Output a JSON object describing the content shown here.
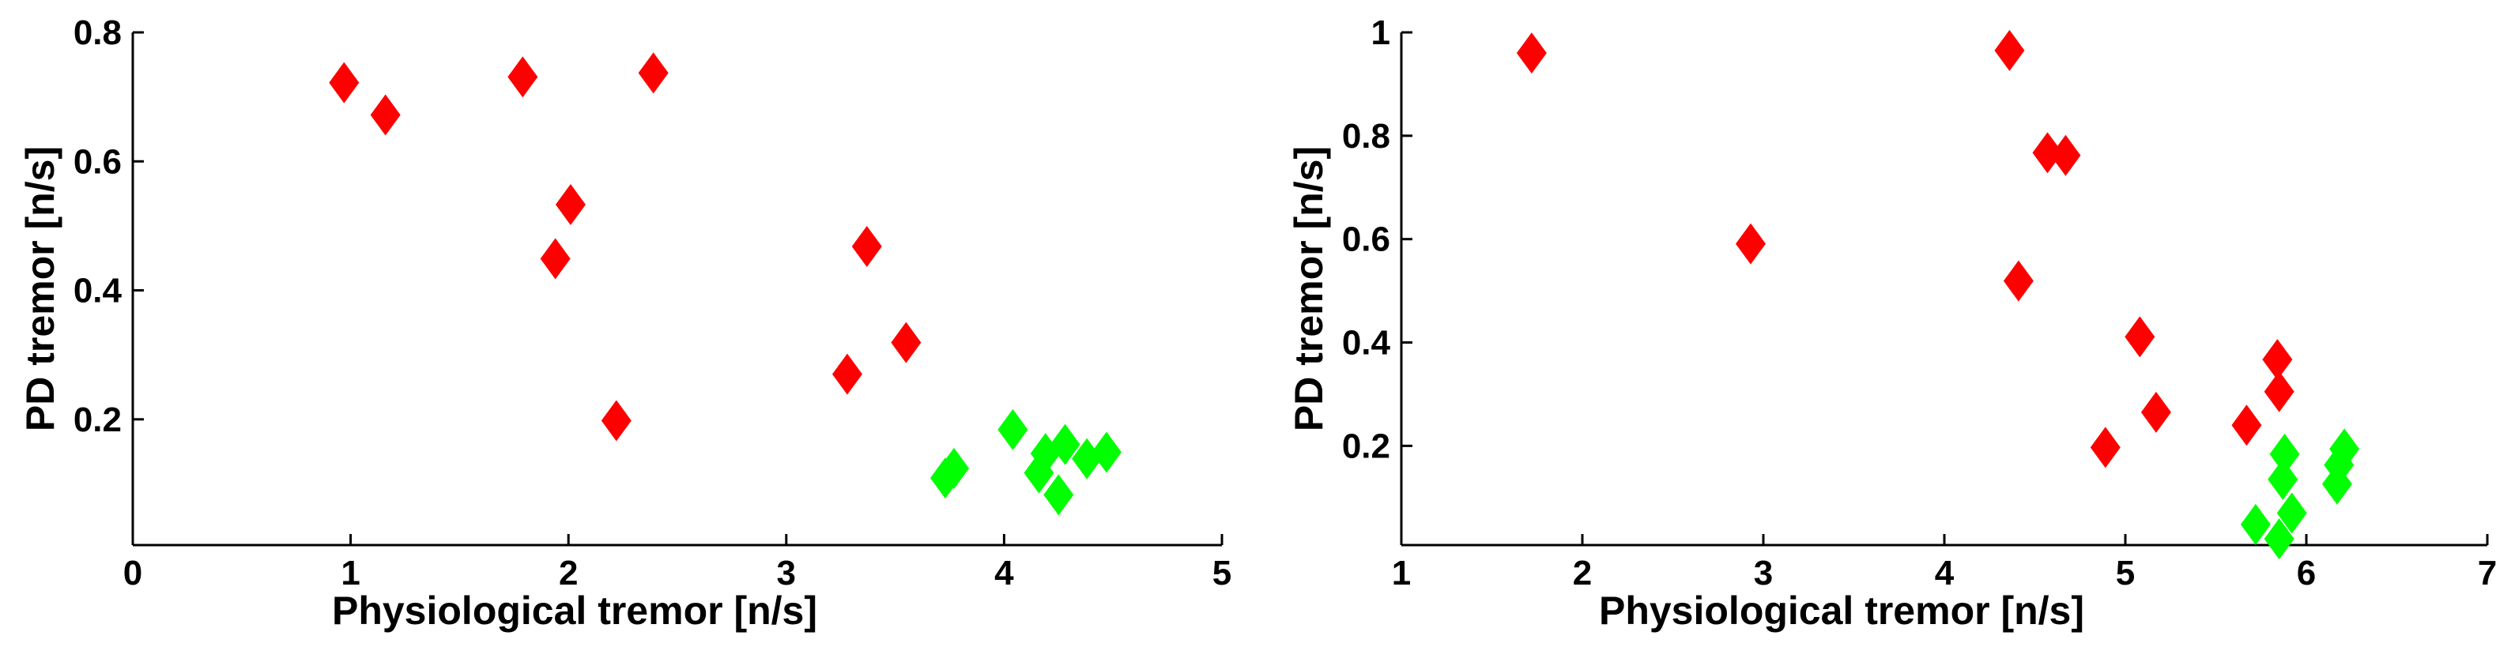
{
  "chart_data": [
    {
      "type": "scatter",
      "xlabel": "Physiological  tremor [n/s]",
      "ylabel": "PD tremor [n/s]",
      "xlim": [
        0,
        5
      ],
      "ylim": [
        0.005,
        0.8
      ],
      "xticks": [
        0,
        1,
        2,
        3,
        4,
        5
      ],
      "yticks": [
        0.2,
        0.4,
        0.6,
        0.8
      ],
      "series": [
        {
          "color": "#ff0000",
          "x": [
            0.97,
            1.16,
            1.79,
            2.39,
            2.01,
            1.94,
            2.22,
            3.37,
            3.28,
            3.55
          ],
          "values": [
            0.722,
            0.672,
            0.731,
            0.737,
            0.533,
            0.449,
            0.198,
            0.468,
            0.27,
            0.319
          ]
        },
        {
          "color": "#00ff00",
          "x": [
            3.73,
            3.77,
            4.04,
            4.16,
            4.19,
            4.25,
            4.28,
            4.38,
            4.47
          ],
          "values": [
            0.109,
            0.124,
            0.184,
            0.117,
            0.147,
            0.083,
            0.161,
            0.139,
            0.149
          ]
        }
      ]
    },
    {
      "type": "scatter",
      "xlabel": "Physiological tremor [n/s]",
      "ylabel": "PD tremor [n/s]",
      "xlim": [
        1,
        7
      ],
      "ylim": [
        0.008,
        1
      ],
      "xticks": [
        1,
        2,
        3,
        4,
        5,
        6,
        7
      ],
      "yticks": [
        0.2,
        0.4,
        0.6,
        0.8,
        1
      ],
      "series": [
        {
          "color": "#ff0000",
          "x": [
            1.72,
            4.36,
            2.93,
            4.57,
            4.67,
            4.41,
            5.08,
            5.17,
            4.89,
            5.67,
            5.84,
            5.85
          ],
          "values": [
            0.96,
            0.965,
            0.591,
            0.767,
            0.762,
            0.519,
            0.411,
            0.265,
            0.197,
            0.24,
            0.367,
            0.305
          ]
        },
        {
          "color": "#00ff00",
          "x": [
            5.72,
            5.85,
            5.87,
            5.88,
            5.92,
            6.17,
            6.18,
            6.21
          ],
          "values": [
            0.048,
            0.02,
            0.135,
            0.184,
            0.07,
            0.126,
            0.163,
            0.194
          ]
        }
      ]
    }
  ]
}
